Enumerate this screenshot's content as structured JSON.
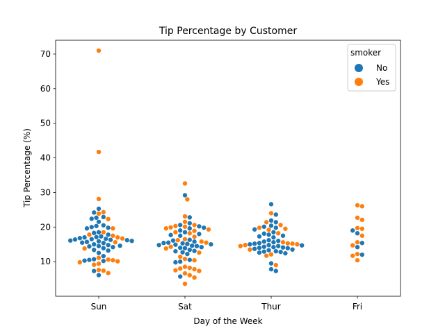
{
  "chart_data": {
    "type": "scatter",
    "subtype": "swarm",
    "title": "Tip Percentage by Customer",
    "xlabel": "Day of the Week",
    "ylabel": "Tip Percentage (%)",
    "categories": [
      "Sun",
      "Sat",
      "Thur",
      "Fri"
    ],
    "ylim": [
      0,
      74
    ],
    "yticks": [
      10,
      20,
      30,
      40,
      50,
      60,
      70
    ],
    "grid": false,
    "legend": {
      "title": "smoker",
      "position": "top-right",
      "entries": [
        {
          "label": "No",
          "color": "#1f77b4"
        },
        {
          "label": "Yes",
          "color": "#ff7f0e"
        }
      ]
    },
    "series": [
      {
        "name": "No",
        "color": "#1f77b4",
        "points": {
          "Sun": [
            6.1,
            7.3,
            10.2,
            10.3,
            10.5,
            10.7,
            11.6,
            12.5,
            13.2,
            13.4,
            13.9,
            14.2,
            14.4,
            14.5,
            14.6,
            14.8,
            15.0,
            15.4,
            15.5,
            15.7,
            15.9,
            16.0,
            16.1,
            16.2,
            16.3,
            16.4,
            16.5,
            16.6,
            16.8,
            17.0,
            17.1,
            17.3,
            17.8,
            18.3,
            18.5,
            19.6,
            19.8,
            20.0,
            20.3,
            20.5,
            21.5,
            22.4,
            22.7,
            22.9,
            24.2,
            25.3
          ],
          "Sat": [
            5.7,
            9.8,
            10.0,
            10.5,
            12.2,
            12.7,
            13.0,
            13.1,
            13.4,
            13.9,
            14.0,
            14.2,
            14.5,
            14.6,
            14.8,
            14.9,
            15.0,
            15.1,
            15.3,
            15.4,
            15.5,
            15.8,
            16.1,
            16.3,
            17.5,
            17.7,
            18.0,
            18.5,
            19.0,
            19.6,
            19.8,
            20.2,
            20.6,
            21.1,
            22.8,
            29.2
          ],
          "Thur": [
            7.3,
            7.8,
            9.5,
            12.4,
            12.6,
            12.8,
            12.9,
            13.0,
            13.3,
            13.5,
            13.7,
            13.9,
            14.0,
            14.1,
            14.2,
            14.3,
            14.5,
            14.7,
            14.8,
            15.0,
            15.2,
            15.4,
            15.6,
            15.8,
            16.0,
            16.2,
            17.0,
            17.3,
            17.5,
            17.8,
            18.1,
            18.5,
            19.3,
            19.8,
            20.1,
            20.4,
            21.4,
            21.9,
            23.6,
            26.6
          ],
          "Fri": [
            12.0,
            14.2,
            15.4,
            18.2,
            19.0
          ]
        }
      },
      {
        "name": "Yes",
        "color": "#ff7f0e",
        "points": {
          "Sun": [
            6.7,
            7.4,
            7.6,
            9.1,
            9.4,
            9.8,
            10.1,
            10.4,
            10.6,
            11.1,
            13.8,
            15.6,
            16.7,
            17.0,
            17.5,
            17.8,
            18.5,
            19.6,
            22.3,
            23.9,
            24.3,
            28.1,
            41.7,
            71.0
          ],
          "Sat": [
            3.6,
            5.4,
            6.1,
            6.6,
            7.3,
            7.5,
            7.8,
            8.0,
            8.2,
            8.5,
            10.4,
            10.8,
            11.4,
            12.6,
            13.8,
            14.3,
            15.5,
            15.8,
            16.2,
            16.5,
            17.2,
            18.2,
            18.5,
            18.9,
            19.3,
            19.6,
            19.9,
            20.1,
            20.3,
            20.6,
            21.5,
            23.1,
            28.0,
            32.6
          ],
          "Thur": [
            9.0,
            11.7,
            12.1,
            13.5,
            14.5,
            14.8,
            15.0,
            15.2,
            15.3,
            15.6,
            18.2,
            19.2,
            19.5,
            19.8,
            20.6,
            21.4,
            24.0
          ],
          "Fri": [
            10.4,
            11.7,
            12.2,
            14.7,
            15.6,
            17.5,
            19.5,
            19.7,
            22.1,
            22.7,
            26.0,
            26.3
          ]
        }
      }
    ]
  }
}
